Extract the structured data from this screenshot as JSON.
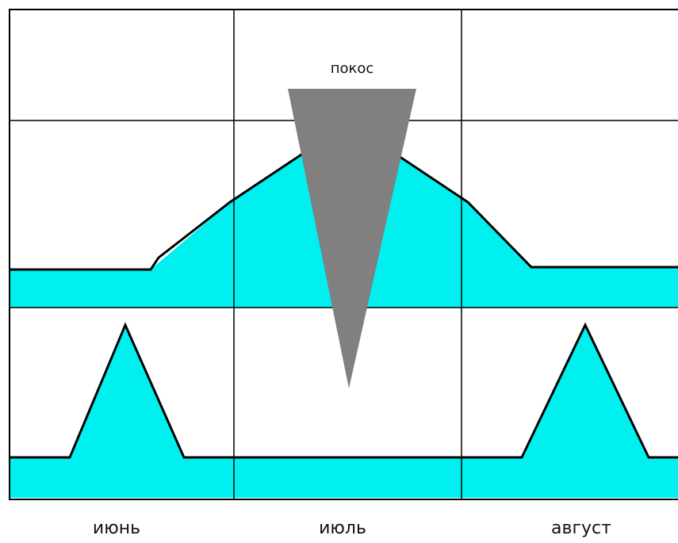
{
  "diagram": {
    "annotation": "покос",
    "months": [
      {
        "label": "июнь"
      },
      {
        "label": "июль"
      },
      {
        "label": "август"
      }
    ],
    "colors": {
      "fill": "#00f0f0",
      "triangle": "#808080",
      "line": "#000000",
      "background": "#ffffff"
    }
  }
}
